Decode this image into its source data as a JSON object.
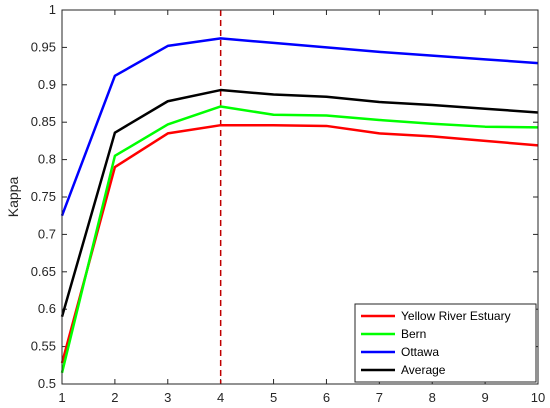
{
  "chart_data": {
    "type": "line",
    "xlabel": "",
    "ylabel": "Kappa",
    "xlim": [
      1,
      10
    ],
    "ylim": [
      0.5,
      1
    ],
    "xticks": [
      1,
      2,
      3,
      4,
      5,
      6,
      7,
      8,
      9,
      10
    ],
    "yticks": [
      0.5,
      0.55,
      0.6,
      0.65,
      0.7,
      0.75,
      0.8,
      0.85,
      0.9,
      0.95,
      1
    ],
    "grid": false,
    "legend_position": "bottom-right",
    "x": [
      1,
      2,
      3,
      4,
      5,
      6,
      7,
      8,
      9,
      10
    ],
    "series": [
      {
        "name": "Yellow River Estuary",
        "color": "#ff0000",
        "values": [
          0.528,
          0.79,
          0.835,
          0.846,
          0.846,
          0.845,
          0.835,
          0.831,
          0.825,
          0.819
        ]
      },
      {
        "name": "Bern",
        "color": "#00ff00",
        "values": [
          0.515,
          0.805,
          0.847,
          0.871,
          0.86,
          0.859,
          0.853,
          0.848,
          0.844,
          0.843
        ]
      },
      {
        "name": "Ottawa",
        "color": "#0000ff",
        "values": [
          0.725,
          0.912,
          0.952,
          0.962,
          0.956,
          0.95,
          0.944,
          0.939,
          0.934,
          0.929
        ]
      },
      {
        "name": "Average",
        "color": "#000000",
        "values": [
          0.59,
          0.836,
          0.878,
          0.893,
          0.887,
          0.884,
          0.877,
          0.873,
          0.868,
          0.863
        ]
      }
    ],
    "annotations": [
      {
        "type": "vertical-dashed-line",
        "x": 4,
        "color": "#c00000"
      }
    ]
  }
}
